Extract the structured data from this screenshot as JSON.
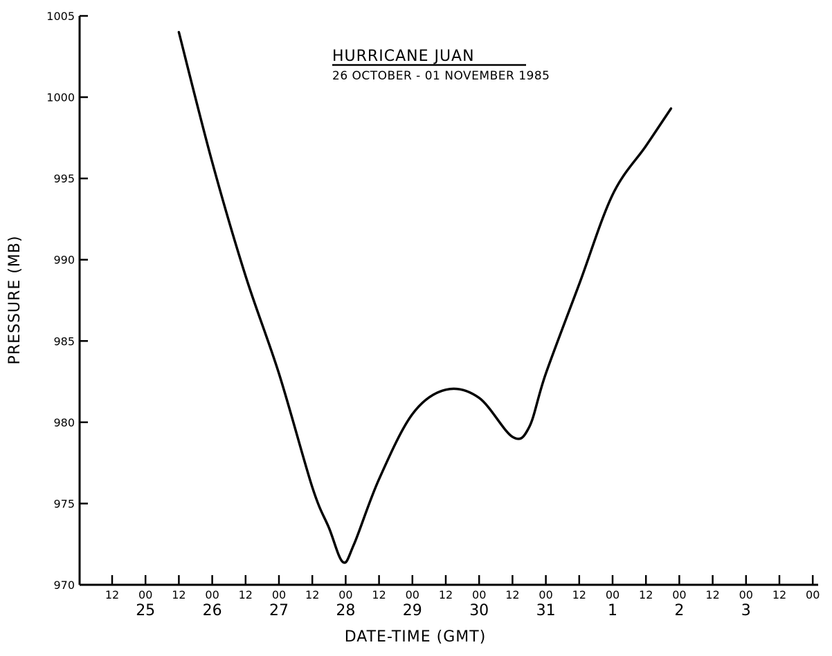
{
  "chart_data": {
    "type": "line",
    "title": "HURRICANE JUAN",
    "subtitle": "26 OCTOBER - 01 NOVEMBER 1985",
    "xlabel": "DATE-TIME (GMT)",
    "ylabel": "PRESSURE (MB)",
    "ylim": [
      970,
      1005
    ],
    "yticks": [
      970,
      975,
      980,
      985,
      990,
      995,
      1000,
      1005
    ],
    "x_ticks": [
      {
        "hour": "12",
        "day": ""
      },
      {
        "hour": "00",
        "day": "25"
      },
      {
        "hour": "12",
        "day": ""
      },
      {
        "hour": "00",
        "day": "26"
      },
      {
        "hour": "12",
        "day": ""
      },
      {
        "hour": "00",
        "day": "27"
      },
      {
        "hour": "12",
        "day": ""
      },
      {
        "hour": "00",
        "day": "28"
      },
      {
        "hour": "12",
        "day": ""
      },
      {
        "hour": "00",
        "day": "29"
      },
      {
        "hour": "12",
        "day": ""
      },
      {
        "hour": "00",
        "day": "30"
      },
      {
        "hour": "12",
        "day": ""
      },
      {
        "hour": "00",
        "day": "31"
      },
      {
        "hour": "12",
        "day": ""
      },
      {
        "hour": "00",
        "day": "1"
      },
      {
        "hour": "12",
        "day": ""
      },
      {
        "hour": "00",
        "day": "2"
      },
      {
        "hour": "12",
        "day": ""
      },
      {
        "hour": "00",
        "day": "3"
      },
      {
        "hour": "12",
        "day": ""
      },
      {
        "hour": "00",
        "day": ""
      }
    ],
    "grid": false,
    "series": [
      {
        "points": [
          {
            "t": "26 12Z",
            "p": 1004
          },
          {
            "t": "27 00Z",
            "p": 996
          },
          {
            "t": "27 12Z",
            "p": 989
          },
          {
            "t": "28 00Z",
            "p": 983
          },
          {
            "t": "28 12Z",
            "p": 976
          },
          {
            "t": "28 18Z",
            "p": 973.5
          },
          {
            "t": "28 23Z",
            "p": 971.4
          },
          {
            "t": "29 03Z",
            "p": 972.5
          },
          {
            "t": "29 12Z",
            "p": 976.5
          },
          {
            "t": "30 00Z",
            "p": 980.5
          },
          {
            "t": "30 12Z",
            "p": 982
          },
          {
            "t": "31 00Z",
            "p": 981.5
          },
          {
            "t": "31 12Z",
            "p": 979.1
          },
          {
            "t": "31 18Z",
            "p": 979.7
          },
          {
            "t": "01 00Z",
            "p": 983
          },
          {
            "t": "01 12Z",
            "p": 988.5
          },
          {
            "t": "02 00Z",
            "p": 994
          },
          {
            "t": "02 12Z",
            "p": 997
          },
          {
            "t": "02 21Z",
            "p": 999.3
          }
        ]
      }
    ]
  }
}
